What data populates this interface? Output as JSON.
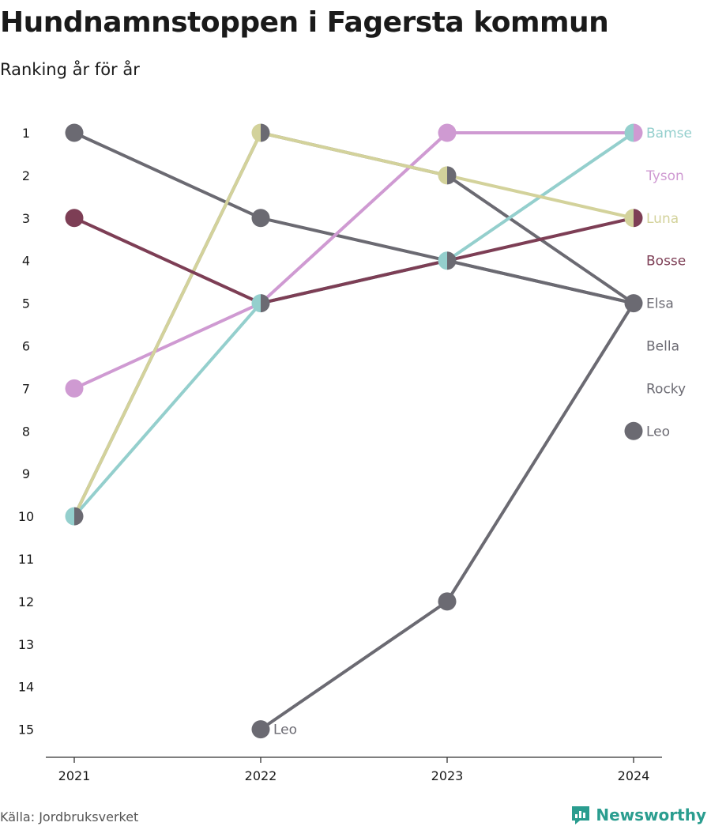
{
  "header": {
    "title": "Hundnamnstoppen i Fagersta kommun",
    "subtitle": "Ranking år för år"
  },
  "footer": {
    "source": "Källa: Jordbruksverket",
    "brand": "Newsworthy",
    "brand_color": "#2a9d8f"
  },
  "colors": {
    "gray": "#6b6a72",
    "bamse": "#94cfcd",
    "tyson": "#cf9ad2",
    "luna": "#d3d29b",
    "bosse": "#7d3e55",
    "axis": "#333333",
    "tick_text": "#1a1a1a"
  },
  "chart_data": {
    "type": "line",
    "x": [
      2021,
      2022,
      2023,
      2024
    ],
    "xlabel": "",
    "ylabel": "",
    "y_ticks": [
      1,
      2,
      3,
      4,
      5,
      6,
      7,
      8,
      9,
      10,
      11,
      12,
      13,
      14,
      15
    ],
    "ylim": [
      1,
      15
    ],
    "y_reversed": true,
    "grid": false,
    "legend": "end-labels",
    "series": [
      {
        "name": "Bamse",
        "color": "#94cfcd",
        "values": [
          10,
          5,
          4,
          1
        ]
      },
      {
        "name": "Tyson",
        "color": "#cf9ad2",
        "values": [
          7,
          5,
          1,
          1
        ]
      },
      {
        "name": "Luna",
        "color": "#d3d29b",
        "values": [
          10,
          1,
          2,
          3
        ]
      },
      {
        "name": "Bosse",
        "color": "#7d3e55",
        "values": [
          3,
          5,
          4,
          3
        ]
      },
      {
        "name": "Elsa",
        "color": "#6b6a72",
        "values": [
          1,
          3,
          4,
          5
        ]
      },
      {
        "name": "Bella",
        "color": "#6b6a72",
        "values": [
          10,
          1,
          2,
          5
        ]
      },
      {
        "name": "Rocky",
        "color": "#6b6a72",
        "values": [
          null,
          5,
          4,
          5
        ]
      },
      {
        "name": "Leo",
        "color": "#6b6a72",
        "values": [
          null,
          15,
          12,
          5
        ]
      }
    ],
    "end_labels": [
      {
        "name": "Bamse",
        "color": "#94cfcd",
        "rank": 1
      },
      {
        "name": "Tyson",
        "color": "#cf9ad2",
        "rank": 2
      },
      {
        "name": "Luna",
        "color": "#d3d29b",
        "rank": 3
      },
      {
        "name": "Bosse",
        "color": "#7d3e55",
        "rank": 4
      },
      {
        "name": "Elsa",
        "color": "#6b6a72",
        "rank": 5
      },
      {
        "name": "Bella",
        "color": "#6b6a72",
        "rank": 6
      },
      {
        "name": "Rocky",
        "color": "#6b6a72",
        "rank": 7
      },
      {
        "name": "Leo",
        "color": "#6b6a72",
        "rank": 8
      }
    ],
    "extra_points": [
      {
        "x": 2024,
        "rank": 8,
        "color": "#6b6a72"
      }
    ],
    "inline_labels": [
      {
        "text": "Leo",
        "x": 2022,
        "rank": 15,
        "color": "#6b6a72"
      }
    ]
  }
}
